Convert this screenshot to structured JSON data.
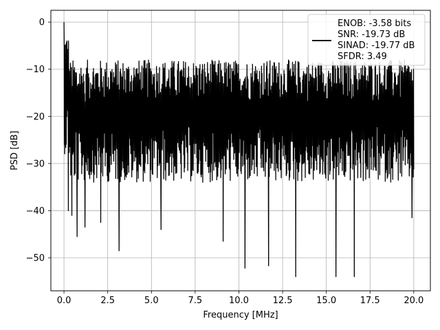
{
  "chart_data": {
    "type": "line",
    "xlabel": "Frequency [MHz]",
    "ylabel": "PSD [dB]",
    "xlim": [
      -0.75,
      20.95
    ],
    "ylim": [
      -57,
      2.5
    ],
    "xticks": [
      0.0,
      2.5,
      5.0,
      7.5,
      10.0,
      12.5,
      15.0,
      17.5,
      20.0
    ],
    "xtick_labels": [
      "0.0",
      "2.5",
      "5.0",
      "7.5",
      "10.0",
      "12.5",
      "15.0",
      "17.5",
      "20.0"
    ],
    "yticks": [
      0,
      -10,
      -20,
      -30,
      -40,
      -50
    ],
    "ytick_labels": [
      "0",
      "−10",
      "−20",
      "−30",
      "−40",
      "−50"
    ],
    "grid": true,
    "legend_position": "top-right",
    "legend_lines": [
      "ENOB: -3.58 bits",
      "SNR: -19.73 dB",
      "SINAD: -19.77 dB",
      "SFDR: 3.49"
    ],
    "series": [
      {
        "color": "#000000",
        "description_points": {
          "x_range": [
            0.0,
            20.0
          ],
          "peak": {
            "x": 0.0,
            "y": 0.0
          },
          "noise_floor_mean": -20,
          "deep_nulls": [
            {
              "x": 0.25,
              "y": -40
            },
            {
              "x": 0.45,
              "y": -41
            },
            {
              "x": 0.75,
              "y": -45.5
            },
            {
              "x": 1.2,
              "y": -43.5
            },
            {
              "x": 2.1,
              "y": -42.5
            },
            {
              "x": 3.15,
              "y": -48.5
            },
            {
              "x": 5.55,
              "y": -44
            },
            {
              "x": 9.1,
              "y": -46.5
            },
            {
              "x": 10.35,
              "y": -52.2
            },
            {
              "x": 11.7,
              "y": -51.7
            },
            {
              "x": 13.25,
              "y": -54
            },
            {
              "x": 15.55,
              "y": -54
            },
            {
              "x": 16.6,
              "y": -54
            },
            {
              "x": 19.9,
              "y": -41.5
            }
          ]
        }
      }
    ]
  }
}
